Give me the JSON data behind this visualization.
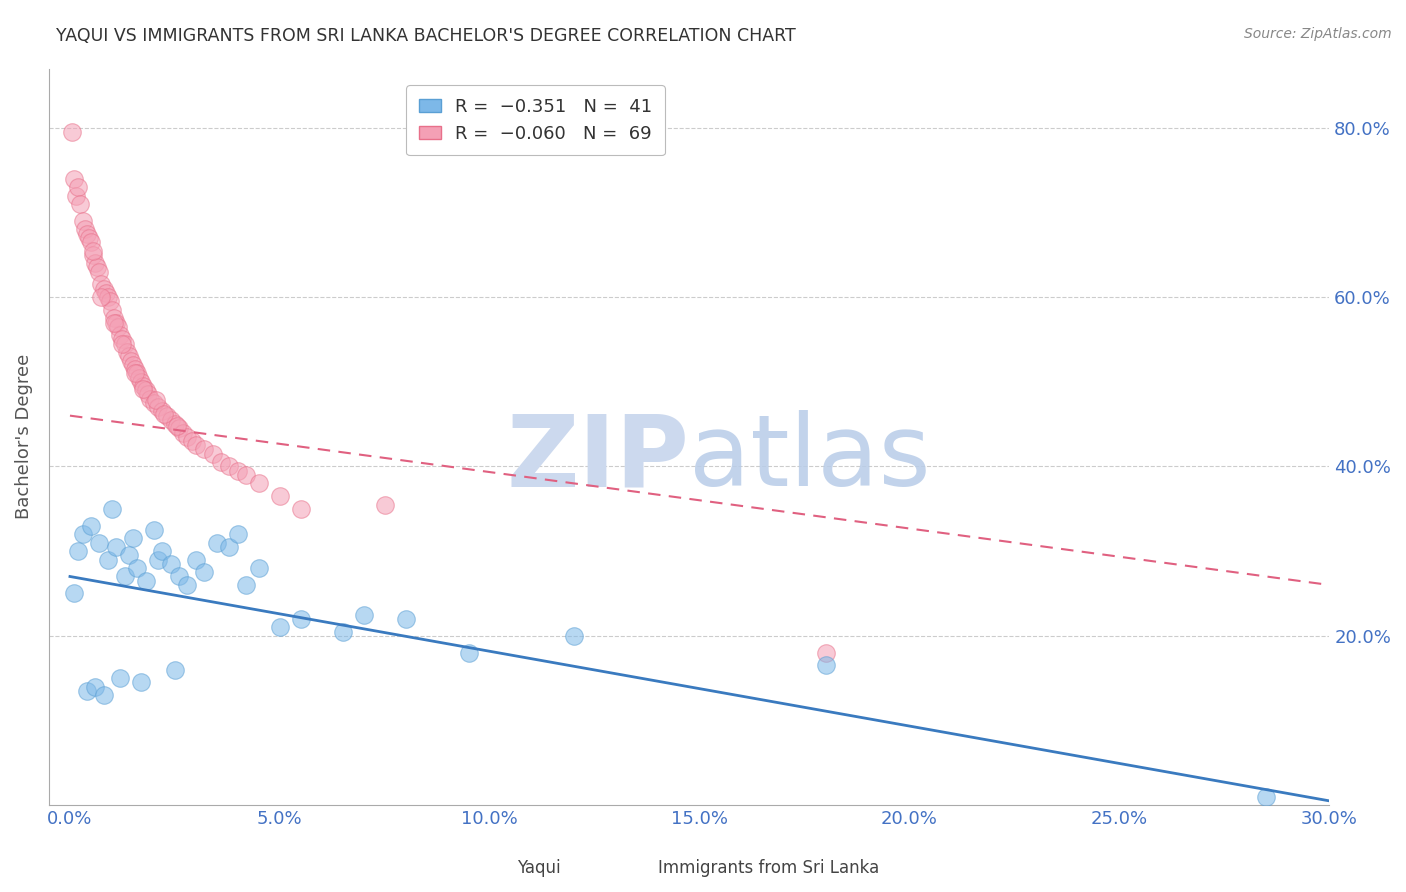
{
  "title": "YAQUI VS IMMIGRANTS FROM SRI LANKA BACHELOR'S DEGREE CORRELATION CHART",
  "source": "Source: ZipAtlas.com",
  "ylabel": "Bachelor's Degree",
  "xlabel_ticks": [
    "0.0%",
    "5.0%",
    "10.0%",
    "15.0%",
    "20.0%",
    "25.0%",
    "30.0%"
  ],
  "xlabel_vals": [
    0.0,
    5.0,
    10.0,
    15.0,
    20.0,
    25.0,
    30.0
  ],
  "ylabel_ticks": [
    "20.0%",
    "40.0%",
    "60.0%",
    "80.0%"
  ],
  "ylabel_vals": [
    20.0,
    40.0,
    60.0,
    80.0
  ],
  "xlim": [
    -0.5,
    30.0
  ],
  "ylim": [
    0.0,
    87.0
  ],
  "watermark_zip": "ZIP",
  "watermark_atlas": "atlas",
  "yaqui_color": "#7db8e8",
  "srilanka_color": "#f4a0b5",
  "yaqui_edge_color": "#5a9fd4",
  "srilanka_edge_color": "#e8708a",
  "yaqui_trend_color": "#3a7abf",
  "srilanka_trend_color": "#e06080",
  "grid_color": "#cccccc",
  "title_color": "#333333",
  "axis_label_color": "#555555",
  "tick_label_color": "#4472c4",
  "watermark_color": "#ccd9ee",
  "yaqui_trend_x": [
    0.0,
    30.0
  ],
  "yaqui_trend_y": [
    27.0,
    0.5
  ],
  "srilanka_trend_x": [
    0.0,
    30.0
  ],
  "srilanka_trend_y": [
    46.0,
    26.0
  ],
  "yaqui_x": [
    0.2,
    0.3,
    0.5,
    0.7,
    0.9,
    1.0,
    1.1,
    1.3,
    1.4,
    1.5,
    1.6,
    1.8,
    2.0,
    2.1,
    2.2,
    2.4,
    2.6,
    2.8,
    3.0,
    3.2,
    3.5,
    3.8,
    4.0,
    4.2,
    4.5,
    5.0,
    5.5,
    6.5,
    7.0,
    8.0,
    9.5,
    12.0,
    18.0,
    28.5,
    0.1,
    0.4,
    0.6,
    0.8,
    1.2,
    1.7,
    2.5
  ],
  "yaqui_y": [
    30.0,
    32.0,
    33.0,
    31.0,
    29.0,
    35.0,
    30.5,
    27.0,
    29.5,
    31.5,
    28.0,
    26.5,
    32.5,
    29.0,
    30.0,
    28.5,
    27.0,
    26.0,
    29.0,
    27.5,
    31.0,
    30.5,
    32.0,
    26.0,
    28.0,
    21.0,
    22.0,
    20.5,
    22.5,
    22.0,
    18.0,
    20.0,
    16.5,
    1.0,
    25.0,
    13.5,
    14.0,
    13.0,
    15.0,
    14.5,
    16.0
  ],
  "srilanka_x": [
    0.05,
    0.1,
    0.15,
    0.2,
    0.25,
    0.3,
    0.35,
    0.4,
    0.45,
    0.5,
    0.55,
    0.6,
    0.65,
    0.7,
    0.75,
    0.8,
    0.85,
    0.9,
    0.95,
    1.0,
    1.05,
    1.1,
    1.15,
    1.2,
    1.25,
    1.3,
    1.35,
    1.4,
    1.45,
    1.5,
    1.55,
    1.6,
    1.65,
    1.7,
    1.75,
    1.8,
    1.85,
    1.9,
    2.0,
    2.1,
    2.2,
    2.3,
    2.4,
    2.5,
    2.6,
    2.7,
    2.8,
    2.9,
    3.0,
    3.2,
    3.4,
    3.6,
    3.8,
    4.0,
    4.2,
    4.5,
    5.0,
    5.5,
    7.5,
    18.0,
    0.55,
    0.75,
    1.05,
    1.25,
    1.55,
    1.75,
    2.05,
    2.25,
    2.55
  ],
  "srilanka_y": [
    79.5,
    74.0,
    72.0,
    73.0,
    71.0,
    69.0,
    68.0,
    67.5,
    67.0,
    66.5,
    65.0,
    64.0,
    63.5,
    63.0,
    61.5,
    61.0,
    60.5,
    60.0,
    59.5,
    58.5,
    57.5,
    57.0,
    56.5,
    55.5,
    55.0,
    54.5,
    53.5,
    53.0,
    52.5,
    52.0,
    51.5,
    51.0,
    50.5,
    50.0,
    49.5,
    49.0,
    48.5,
    48.0,
    47.5,
    47.0,
    46.5,
    46.0,
    45.5,
    45.0,
    44.5,
    44.0,
    43.5,
    43.0,
    42.5,
    42.0,
    41.5,
    40.5,
    40.0,
    39.5,
    39.0,
    38.0,
    36.5,
    35.0,
    35.5,
    18.0,
    65.5,
    60.0,
    57.0,
    54.5,
    51.0,
    49.2,
    47.8,
    46.2,
    44.8
  ]
}
